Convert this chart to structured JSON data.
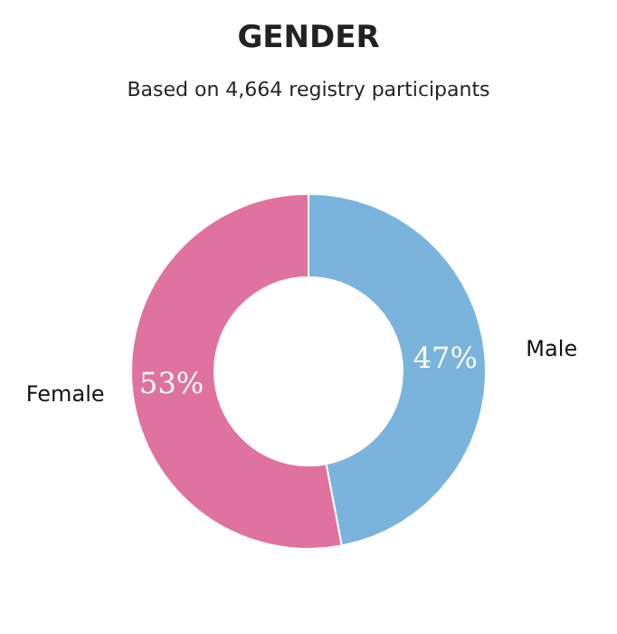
{
  "chart_data": {
    "type": "donut",
    "title": "GENDER",
    "subtitle": "Based on 4,664 registry participants",
    "categories": [
      "Male",
      "Female"
    ],
    "values": [
      47,
      53
    ],
    "value_labels": [
      "47%",
      "53%"
    ],
    "colors": [
      "#7ab4dc",
      "#e0729f"
    ],
    "legend": false
  }
}
